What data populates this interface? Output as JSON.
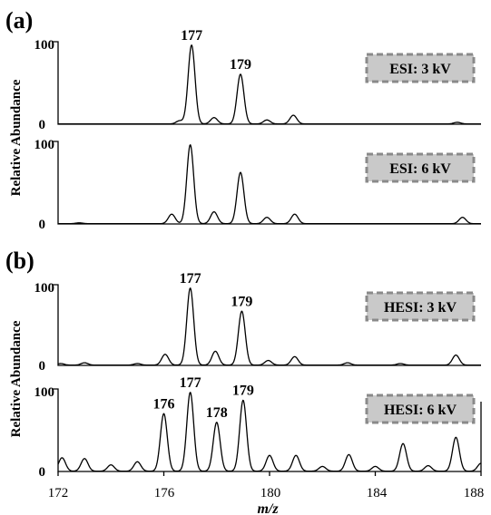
{
  "panels": [
    {
      "label": "(a)"
    },
    {
      "label": "(b)"
    }
  ],
  "ylabel": "Relative Abundance",
  "xlabel": "m/z",
  "chart_data": {
    "type": "line",
    "title": "",
    "xlabel": "m/z",
    "ylabel": "Relative Abundance",
    "xlim": [
      172,
      188
    ],
    "ylim": [
      0,
      100
    ],
    "x_ticks": [
      "172",
      "176",
      "180",
      "184",
      "188"
    ],
    "y_ticks": [
      "0",
      "100"
    ],
    "series": [
      {
        "name": "ESI: 3 kV",
        "peak_labels": [
          "177",
          "179"
        ],
        "peaks": [
          [
            176.6,
            4
          ],
          [
            177.05,
            100
          ],
          [
            177.9,
            8
          ],
          [
            178.9,
            63
          ],
          [
            179.9,
            5
          ],
          [
            180.9,
            11
          ],
          [
            187.1,
            2
          ]
        ]
      },
      {
        "name": "ESI: 6 kV",
        "peak_labels": [],
        "peaks": [
          [
            172.8,
            1
          ],
          [
            176.3,
            12
          ],
          [
            177.0,
            100
          ],
          [
            177.9,
            15
          ],
          [
            178.9,
            65
          ],
          [
            179.9,
            8
          ],
          [
            180.95,
            12
          ],
          [
            187.3,
            8
          ]
        ]
      },
      {
        "name": "HESI: 3 kV",
        "peak_labels": [
          "177",
          "179"
        ],
        "peaks": [
          [
            172.1,
            2
          ],
          [
            173.0,
            3
          ],
          [
            175.0,
            2
          ],
          [
            176.05,
            14
          ],
          [
            177.0,
            100
          ],
          [
            177.95,
            18
          ],
          [
            178.95,
            70
          ],
          [
            179.95,
            6
          ],
          [
            180.95,
            11
          ],
          [
            182.95,
            3
          ],
          [
            184.95,
            2
          ],
          [
            187.05,
            13
          ]
        ]
      },
      {
        "name": "HESI: 6 kV",
        "peak_labels": [
          "176",
          "177",
          "178",
          "179"
        ],
        "peaks": [
          [
            172.15,
            17
          ],
          [
            173.0,
            16
          ],
          [
            174.0,
            8
          ],
          [
            175.0,
            12
          ],
          [
            176.0,
            73
          ],
          [
            177.0,
            100
          ],
          [
            178.0,
            62
          ],
          [
            179.0,
            90
          ],
          [
            180.0,
            20
          ],
          [
            181.0,
            20
          ],
          [
            182.0,
            6
          ],
          [
            183.0,
            21
          ],
          [
            184.0,
            6
          ],
          [
            185.05,
            35
          ],
          [
            186.0,
            7
          ],
          [
            187.05,
            43
          ],
          [
            188.0,
            10
          ]
        ]
      }
    ]
  }
}
